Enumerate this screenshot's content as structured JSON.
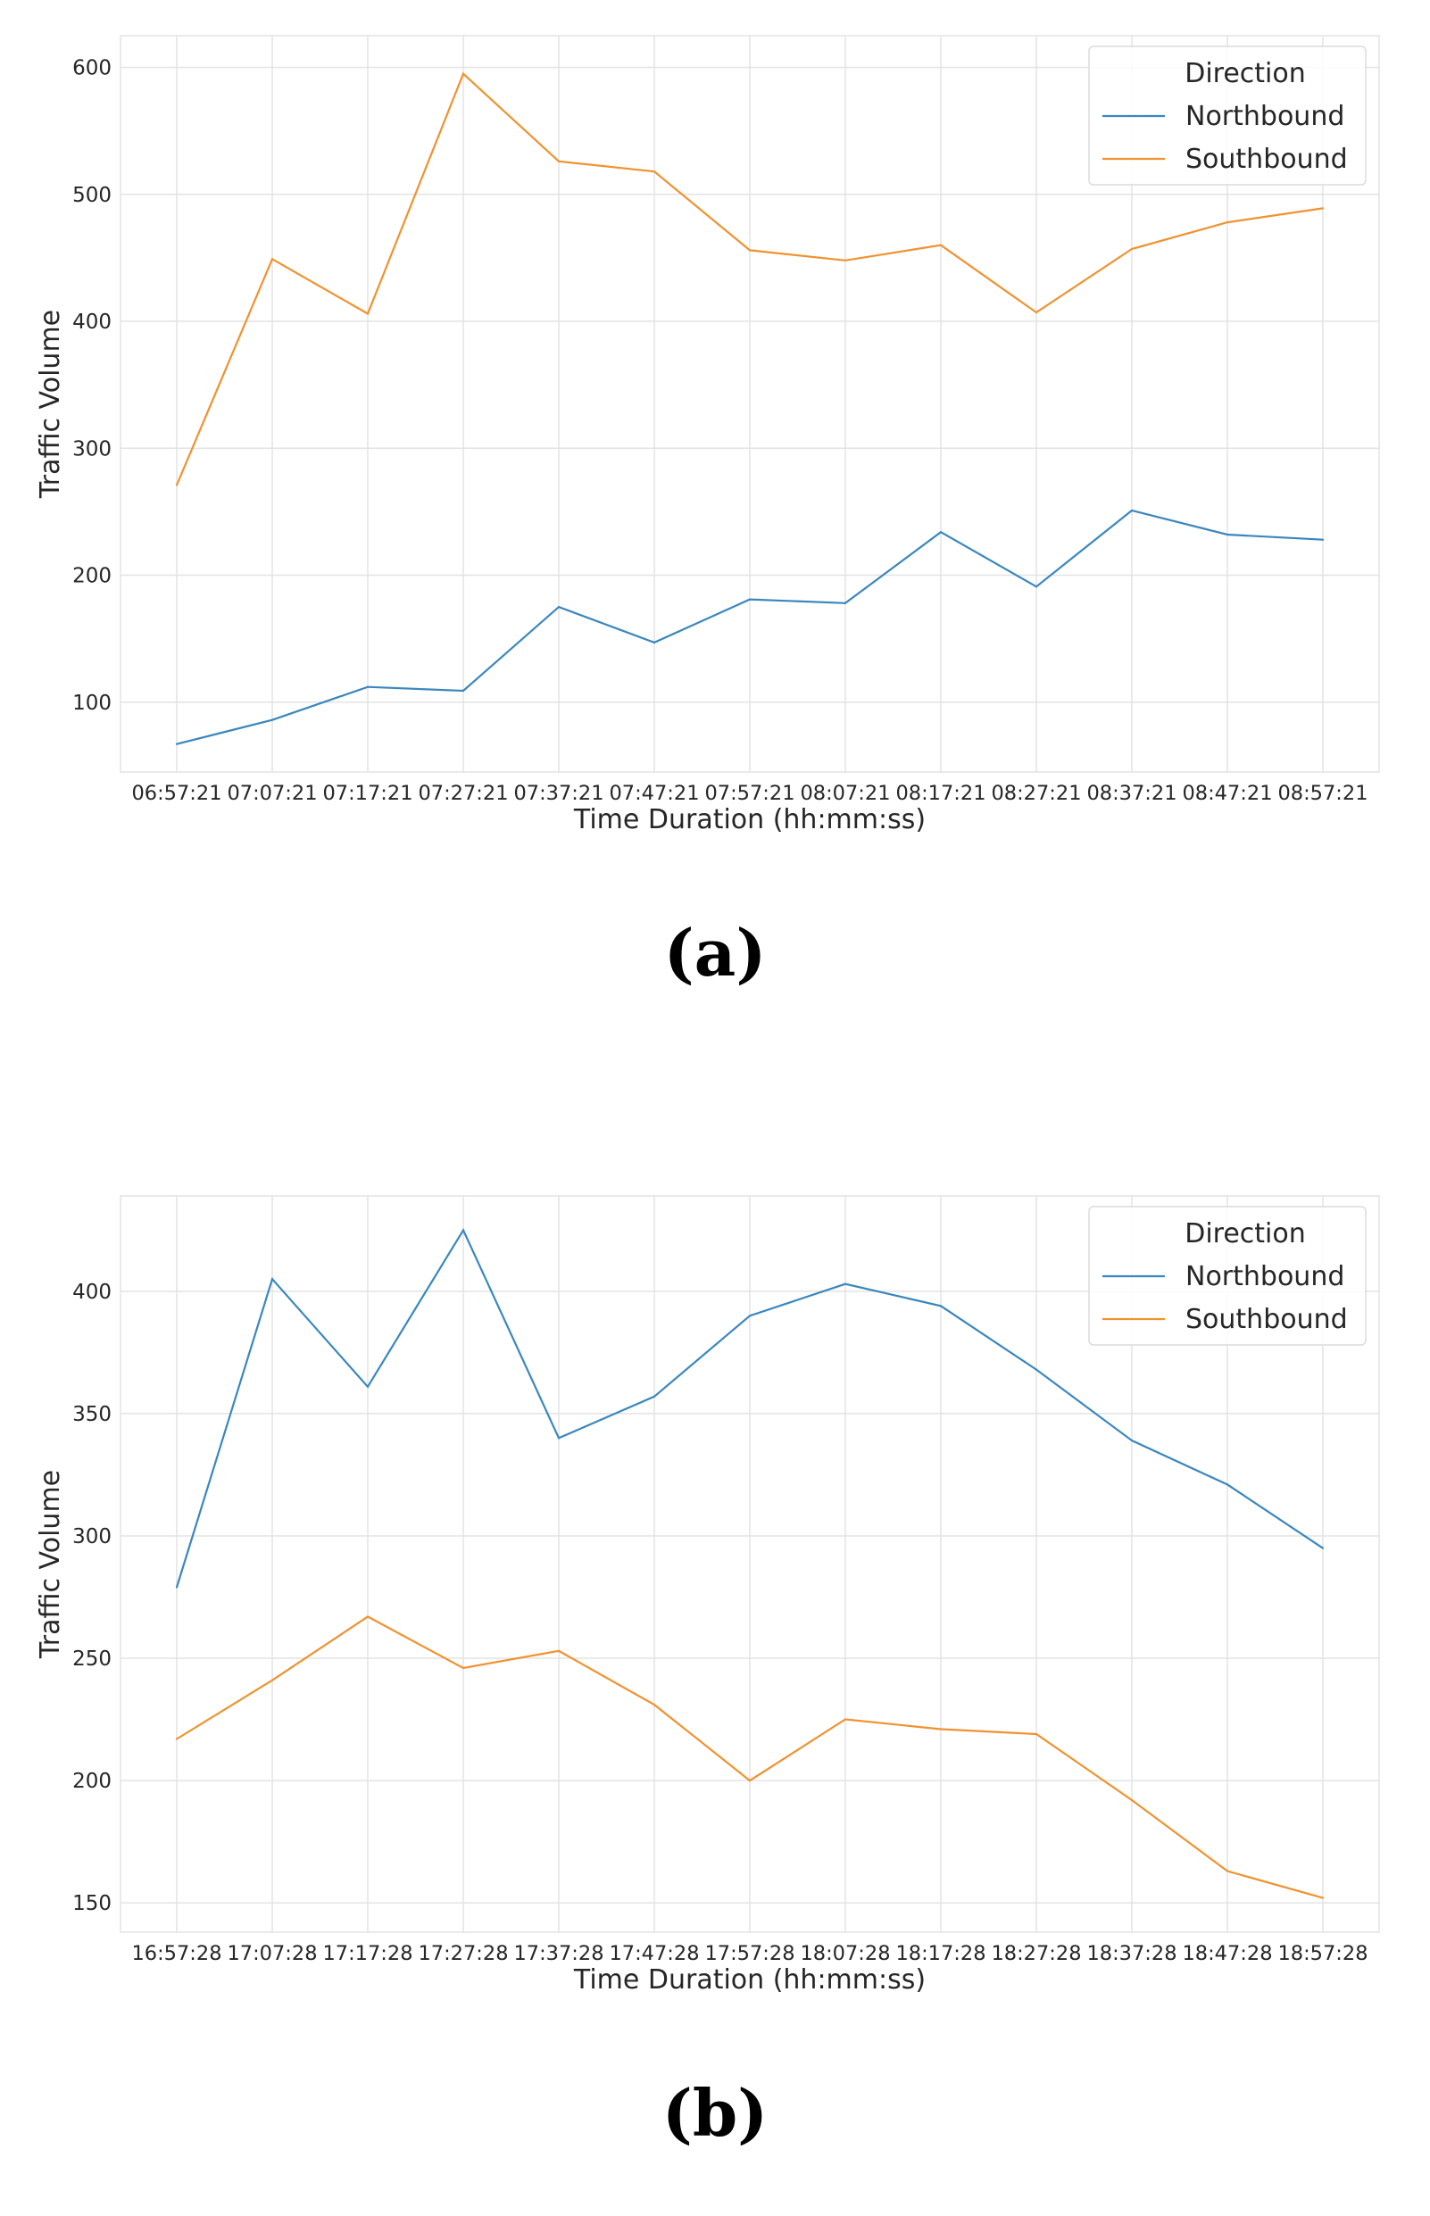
{
  "chart_data": [
    {
      "type": "line",
      "panel_caption": "(a)",
      "xlabel": "Time Duration (hh:mm:ss)",
      "ylabel": "Traffic Volume",
      "categories": [
        "06:57:21",
        "07:07:21",
        "07:17:21",
        "07:27:21",
        "07:37:21",
        "07:47:21",
        "07:57:21",
        "08:07:21",
        "08:17:21",
        "08:27:21",
        "08:37:21",
        "08:47:21",
        "08:57:21"
      ],
      "ylim": [
        45,
        625
      ],
      "yticks": [
        100,
        200,
        300,
        400,
        500,
        600
      ],
      "grid": true,
      "legend": {
        "title": "Direction",
        "position": "top-right"
      },
      "series": [
        {
          "name": "Northbound",
          "color": "#3a87bd",
          "values": [
            67,
            86,
            112,
            109,
            175,
            147,
            181,
            178,
            234,
            191,
            251,
            232,
            228
          ]
        },
        {
          "name": "Southbound",
          "color": "#f0922f",
          "values": [
            271,
            449,
            406,
            595,
            526,
            518,
            456,
            448,
            460,
            407,
            457,
            478,
            489
          ]
        }
      ]
    },
    {
      "type": "line",
      "panel_caption": "(b)",
      "xlabel": "Time Duration (hh:mm:ss)",
      "ylabel": "Traffic Volume",
      "categories": [
        "16:57:28",
        "17:07:28",
        "17:17:28",
        "17:27:28",
        "17:37:28",
        "17:47:28",
        "17:57:28",
        "18:07:28",
        "18:17:28",
        "18:27:28",
        "18:37:28",
        "18:47:28",
        "18:57:28"
      ],
      "ylim": [
        138,
        439
      ],
      "yticks": [
        150,
        200,
        250,
        300,
        350,
        400
      ],
      "grid": true,
      "legend": {
        "title": "Direction",
        "position": "top-right"
      },
      "series": [
        {
          "name": "Northbound",
          "color": "#3a87bd",
          "values": [
            279,
            405,
            361,
            425,
            340,
            357,
            390,
            403,
            394,
            368,
            339,
            321,
            295
          ]
        },
        {
          "name": "Southbound",
          "color": "#f0922f",
          "values": [
            217,
            241,
            267,
            246,
            253,
            231,
            200,
            225,
            221,
            219,
            192,
            163,
            152
          ]
        }
      ]
    }
  ]
}
